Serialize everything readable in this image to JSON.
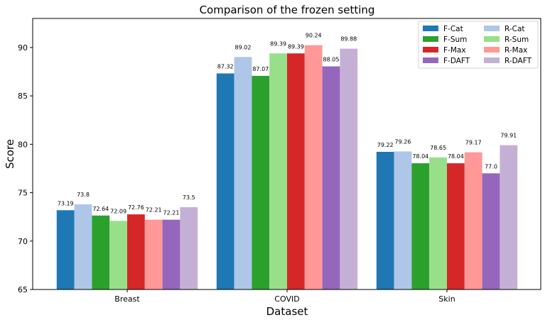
{
  "chart_data": {
    "type": "bar",
    "title": "Comparison of the frozen setting",
    "xlabel": "Dataset",
    "ylabel": "Score",
    "categories": [
      "Breast",
      "COVID",
      "Skin"
    ],
    "ylim": [
      65,
      93
    ],
    "yticks": [
      65,
      70,
      75,
      80,
      85,
      90
    ],
    "grid": false,
    "legend_position": "top-right",
    "legend_columns": 2,
    "series": [
      {
        "name": "F-Cat",
        "color": "#1f77b4",
        "values": [
          73.19,
          87.32,
          79.22
        ],
        "labels": [
          "73.19",
          "87.32",
          "79.22"
        ]
      },
      {
        "name": "R-Cat",
        "color": "#aec7e8",
        "values": [
          73.8,
          89.02,
          79.26
        ],
        "labels": [
          "73.8",
          "89.02",
          "79.26"
        ]
      },
      {
        "name": "F-Sum",
        "color": "#2ca02c",
        "values": [
          72.64,
          87.07,
          78.04
        ],
        "labels": [
          "72.64",
          "87.07",
          "78.04"
        ]
      },
      {
        "name": "R-Sum",
        "color": "#98df8a",
        "values": [
          72.09,
          89.39,
          78.65
        ],
        "labels": [
          "72.09",
          "89.39",
          "78.65"
        ]
      },
      {
        "name": "F-Max",
        "color": "#d62728",
        "values": [
          72.76,
          89.39,
          78.04
        ],
        "labels": [
          "72.76",
          "89.39",
          "78.04"
        ]
      },
      {
        "name": "R-Max",
        "color": "#ff9896",
        "values": [
          72.21,
          90.24,
          79.17
        ],
        "labels": [
          "72.21",
          "90.24",
          "79.17"
        ]
      },
      {
        "name": "F-DAFT",
        "color": "#9467bd",
        "values": [
          72.21,
          88.05,
          77.0
        ],
        "labels": [
          "72.21",
          "88.05",
          "77.0"
        ]
      },
      {
        "name": "R-DAFT",
        "color": "#c5b0d5",
        "values": [
          73.5,
          89.88,
          79.91
        ],
        "labels": [
          "73.5",
          "89.88",
          "79.91"
        ]
      }
    ]
  }
}
